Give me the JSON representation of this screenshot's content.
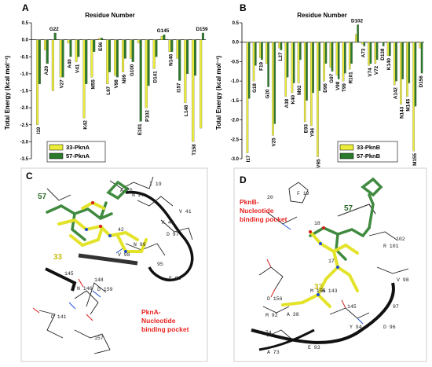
{
  "chart_data": [
    {
      "type": "bar",
      "panel": "A",
      "title": "Residue Number",
      "ylabel": "Total Energy (kcal mol⁻¹)",
      "ylim": [
        -3.5,
        0.5
      ],
      "yticks": [
        "0.5",
        "0.0",
        "-0.5",
        "-1.0",
        "-1.5",
        "-2.0",
        "-2.5",
        "-3.0",
        "-3.5"
      ],
      "categories": [
        "I19",
        "A20",
        "G22",
        "V27",
        "A40",
        "V41",
        "K42",
        "M55",
        "E56",
        "L97",
        "V98",
        "N99",
        "G100",
        "E101",
        "P102",
        "D141",
        "G145",
        "N146",
        "I157",
        "L148",
        "T158",
        "D159"
      ],
      "series": [
        {
          "name": "33-PknA",
          "color": "#ecec3a",
          "values": [
            -2.5,
            -0.3,
            -1.5,
            -1.1,
            -0.1,
            -0.65,
            -2.3,
            -1.1,
            0.05,
            -1.3,
            -1.05,
            -0.95,
            -0.55,
            -0.1,
            -2.0,
            -0.85,
            0.1,
            -0.35,
            -0.55,
            -1.85,
            -3.0,
            -2.6
          ]
        },
        {
          "name": "57-PknA",
          "color": "#2b7a2b",
          "values": [
            -1.3,
            -0.7,
            0.2,
            -1.1,
            -0.5,
            -0.5,
            -1.3,
            -0.35,
            0.05,
            -0.95,
            -1.1,
            -0.55,
            -0.65,
            -2.4,
            -1.35,
            -0.5,
            0.15,
            -0.35,
            -1.2,
            -1.0,
            -1.05,
            0.2
          ]
        }
      ]
    },
    {
      "type": "bar",
      "panel": "B",
      "title": "Residue Number",
      "ylabel": "Total Energy (kcal mol⁻¹)",
      "ylim": [
        -3.0,
        0.5
      ],
      "yticks": [
        "0.5",
        "0.0",
        "-0.5",
        "-1.0",
        "-1.5",
        "-2.0",
        "-2.5",
        "-3.0"
      ],
      "categories": [
        "I17",
        "G18",
        "F19",
        "G20",
        "V25",
        "L27",
        "A38",
        "K40",
        "M92",
        "E93",
        "Y94",
        "V95",
        "D96",
        "G97",
        "V98",
        "T99",
        "R101",
        "D102",
        "A73",
        "V74",
        "V72",
        "D138",
        "K140",
        "A142",
        "N143",
        "M145",
        "M155",
        "D156"
      ],
      "series": [
        {
          "name": "33-PknB",
          "color": "#ecec3a",
          "values": [
            -2.85,
            -1.0,
            -0.4,
            -0.55,
            -2.4,
            -0.15,
            -1.4,
            -1.3,
            -1.05,
            -2.05,
            -2.15,
            -2.95,
            -1.0,
            -0.65,
            -0.85,
            -1.0,
            -0.7,
            0.2,
            -0.05,
            -0.6,
            -0.55,
            0.0,
            -0.35,
            -1.1,
            -1.6,
            -1.4,
            -2.8,
            -0.15
          ]
        },
        {
          "name": "57-PknB",
          "color": "#2b7a2b",
          "values": [
            -1.45,
            -0.6,
            -0.45,
            -1.15,
            -2.1,
            -0.2,
            -0.9,
            -1.05,
            -0.45,
            -1.5,
            -1.3,
            -1.25,
            -0.55,
            -0.75,
            -0.95,
            -0.8,
            -0.55,
            0.45,
            -0.1,
            -0.55,
            -0.45,
            -0.1,
            -0.35,
            -1.0,
            -0.95,
            -1.05,
            -1.65,
            -0.8
          ]
        }
      ]
    }
  ],
  "panels": {
    "C": {
      "letter": "C",
      "ligand_57": "57",
      "ligand_33": "33",
      "pocket_label": [
        "PknA-",
        "Nucleotide",
        "binding pocket"
      ],
      "residue_labels": [
        "A 20",
        "I 19",
        "N 27",
        "V 41",
        "K 40",
        "D 97",
        "42",
        "N 99",
        "V 98",
        "95",
        "E 96",
        "145",
        "N 146",
        "148",
        "D 159",
        "D 141",
        "157"
      ]
    },
    "D": {
      "letter": "D",
      "ligand_57": "57",
      "ligand_33": "33",
      "pocket_label": [
        "PknB-",
        "Nucleotide",
        "binding pocket"
      ],
      "residue_labels": [
        "F 19",
        "20",
        "R 101",
        "102",
        "18",
        "17",
        "N 143",
        "V 98",
        "D 156",
        "145",
        "M 155",
        "M 92",
        "A 38",
        "Y 94",
        "D 96",
        "97",
        "V 74",
        "E 93",
        "A 73"
      ]
    }
  }
}
